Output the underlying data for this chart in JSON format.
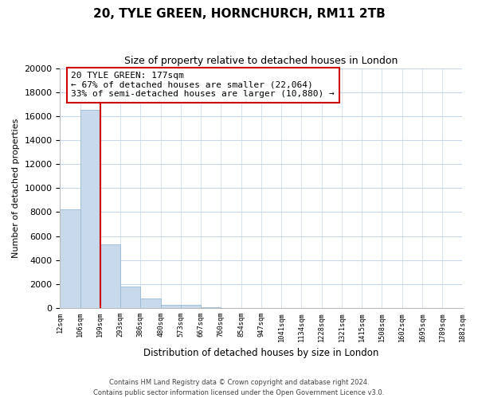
{
  "title": "20, TYLE GREEN, HORNCHURCH, RM11 2TB",
  "subtitle": "Size of property relative to detached houses in London",
  "xlabel": "Distribution of detached houses by size in London",
  "ylabel": "Number of detached properties",
  "bar_values": [
    8200,
    16500,
    5300,
    1800,
    800,
    300,
    300,
    100,
    0,
    0,
    0,
    0,
    0,
    0,
    0,
    0,
    0,
    0,
    0,
    0
  ],
  "bar_labels": [
    "12sqm",
    "106sqm",
    "199sqm",
    "293sqm",
    "386sqm",
    "480sqm",
    "573sqm",
    "667sqm",
    "760sqm",
    "854sqm",
    "947sqm",
    "1041sqm",
    "1134sqm",
    "1228sqm",
    "1321sqm",
    "1415sqm",
    "1508sqm",
    "1602sqm",
    "1695sqm",
    "1789sqm",
    "1882sqm"
  ],
  "bar_color": "#c8d9eb",
  "bar_edge_color": "#99b8d4",
  "vline_color": "#cc0000",
  "annotation_title": "20 TYLE GREEN: 177sqm",
  "annotation_line1": "← 67% of detached houses are smaller (22,064)",
  "annotation_line2": "33% of semi-detached houses are larger (10,880) →",
  "annotation_box_color": "#ffffff",
  "annotation_box_edge": "#cc0000",
  "ylim": [
    0,
    20000
  ],
  "yticks": [
    0,
    2000,
    4000,
    6000,
    8000,
    10000,
    12000,
    14000,
    16000,
    18000,
    20000
  ],
  "footer_line1": "Contains HM Land Registry data © Crown copyright and database right 2024.",
  "footer_line2": "Contains public sector information licensed under the Open Government Licence v3.0.",
  "background_color": "#ffffff",
  "grid_color": "#c8d8e8"
}
